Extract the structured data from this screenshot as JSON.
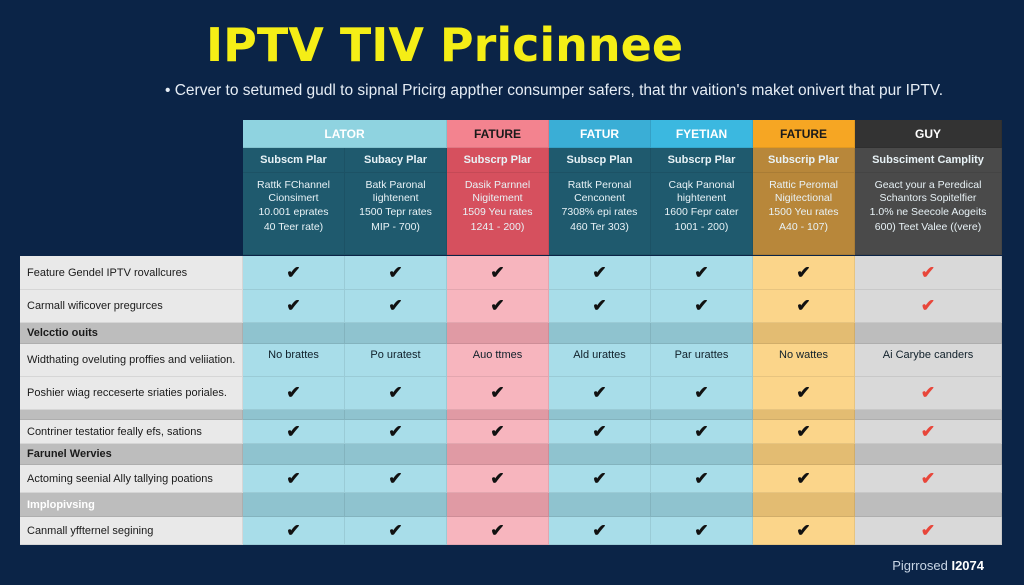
{
  "title": "IPTV TIV Pricinnee",
  "subtitle": "• Cerver to setumed gudl to sipnal Pricirg appther consumper safers, that thr vaition's maket onivert that pur IPTV.",
  "footer": {
    "text": "Pigrrosed",
    "year": "I2074"
  },
  "colors": {
    "background": "#0b2447",
    "title": "#f5ee16",
    "blue": "#a8dde9",
    "teal": "#1f5a6e",
    "pink": "#f7b5be",
    "orange": "#fbd58a",
    "gray": "#d9d9d9",
    "check": "#111111",
    "check_alt": "#e8463a"
  },
  "header_groups": [
    {
      "label": "LATOR"
    },
    {
      "label": "FATURE"
    },
    {
      "label": "FATUR"
    },
    {
      "label": "FYETIAN"
    },
    {
      "label": "FATURE"
    },
    {
      "label": "GUY"
    }
  ],
  "plans": [
    {
      "name": "Subscm Plar",
      "desc": [
        "Rattk FChannel Cionsimert",
        "10.001 eprates",
        "40 Teer rate)"
      ]
    },
    {
      "name": "Subacy Plar",
      "desc": [
        "Batk Paronal Iightenent",
        "1500 Tepr rates",
        "MIP - 700)"
      ]
    },
    {
      "name": "Subscrp Plar",
      "desc": [
        "Dasik Parnnel Nigitement",
        "1509 Yeu rates",
        "1241 - 200)"
      ]
    },
    {
      "name": "Subscp Plan",
      "desc": [
        "Rattk Peronal Cenconent",
        "7308% epi rates",
        "460 Ter 303)"
      ]
    },
    {
      "name": "Subscrp Plar",
      "desc": [
        "Caqk Panonal hightenent",
        "1600 Fepr cater",
        "1001 - 200)"
      ]
    },
    {
      "name": "Subscrip Plar",
      "desc": [
        "Rattic Peromal Nigitectional",
        "1500 Yeu rates",
        "A40 - 107)"
      ]
    },
    {
      "name": "Subsciment Camplity",
      "desc": [
        "Geact your a Peredical Schantors Sopitelfier",
        "1.0% ne Seecole Aogeits",
        "600) Teet Valee ((vere)"
      ]
    }
  ],
  "rows": [
    {
      "label": "Feature Gendel IPTV rovallcures",
      "type": "check",
      "values": [
        true,
        true,
        true,
        true,
        true,
        true,
        true
      ]
    },
    {
      "label": "Carmall wificover pregurces",
      "type": "check",
      "values": [
        true,
        true,
        true,
        true,
        true,
        true,
        true
      ]
    },
    {
      "label": "Velcctio ouits",
      "type": "section"
    },
    {
      "label": "Widthating oveluting proffies and veliiation.",
      "type": "text",
      "values": [
        "No brattes",
        "Po uratest",
        "Auo ttmes",
        "Ald urattes",
        "Par urattes",
        "No wattes",
        "Ai Carybe canders"
      ]
    },
    {
      "label": "Poshier wiag recceserte sriaties poriales.",
      "type": "check",
      "values": [
        true,
        true,
        true,
        true,
        true,
        true,
        true
      ]
    },
    {
      "label": "",
      "type": "section"
    },
    {
      "label": "Contriner testatior feally efs, sations",
      "type": "check",
      "values": [
        true,
        true,
        true,
        true,
        true,
        true,
        true
      ]
    },
    {
      "label": "Farunel Wervies",
      "type": "section"
    },
    {
      "label": "Actoming seenial Ally tallying poations",
      "type": "check",
      "values": [
        true,
        true,
        true,
        true,
        true,
        true,
        true
      ]
    },
    {
      "label": "Implopivsing",
      "type": "section"
    },
    {
      "label": "Canmall yffternel segining",
      "type": "check",
      "values": [
        true,
        true,
        true,
        true,
        true,
        true,
        true
      ]
    }
  ]
}
